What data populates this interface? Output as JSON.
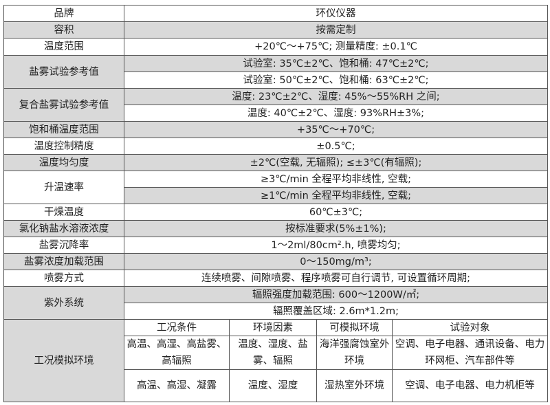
{
  "rows": {
    "brand": {
      "label": "品牌",
      "value": "环仪仪器"
    },
    "volume": {
      "label": "容积",
      "value": "按需定制"
    },
    "temp_range": {
      "label": "温度范围",
      "value": "+20℃～+75℃; 测量精度: ±0.1℃"
    },
    "salt_spray_ref": {
      "label": "盐雾试验参考值",
      "values": [
        "试验室: 35℃±2℃、饱和桶: 47℃±2℃;",
        "试验室: 50℃±2℃、饱和桶: 63℃±2℃;"
      ]
    },
    "composite_ref": {
      "label": "复合盐雾试验参考值",
      "values": [
        "温度: 23℃±2℃、湿度: 45%～55%RH 之间;",
        "温度: 40℃±2℃、湿度: 93%RH±3%;"
      ]
    },
    "saturation_range": {
      "label": "饱和桶温度范围",
      "value": "+35℃～+70℃;"
    },
    "temp_control": {
      "label": "温度控制精度",
      "value": "±0.5℃;"
    },
    "temp_uniformity": {
      "label": "温度均匀度",
      "value": "±2℃(空载, 无辐照); ≤±3℃(有辐照);"
    },
    "heating_rate": {
      "label": "升温速率",
      "values": [
        "≥3℃/min 全程平均非线性, 空载;",
        "≥1℃/min 全程平均非线性, 空载;"
      ]
    },
    "drying_temp": {
      "label": "干燥温度",
      "value": "60℃±3℃;"
    },
    "nacl_concentration": {
      "label": "氯化钠盐水溶液浓度",
      "value": "按标准要求(5%±1%);"
    },
    "settling_rate": {
      "label": "盐雾沉降率",
      "value": "1～2ml/80cm².h, 喷雾均匀;"
    },
    "concentration_range": {
      "label": "盐雾浓度加载范围",
      "value": "0～150mg/m³;"
    },
    "spray_mode": {
      "label": "喷雾方式",
      "value": "连续喷雾、间隙喷雾、程序喷雾可自行调节, 可设置循环周期;"
    },
    "uv_system": {
      "label": "紫外系统",
      "values": [
        "辐照强度加载范围: 600～1200W/㎡;",
        "辐照覆盖区域: 2.6m*1.2m;"
      ]
    },
    "conditions": {
      "label": "工况模拟环境",
      "headers": [
        "工况条件",
        "环境因素",
        "可模拟环境",
        "试验对象"
      ],
      "rows": [
        [
          "高温、高湿、高盐雾、高辐照",
          "温度、湿度、盐雾、辐照",
          "海洋强腐蚀室外环境",
          "空调、电子电器、通讯设备、电力环网柜、汽车部件等"
        ],
        [
          "高温、高湿、凝露",
          "温度、湿度",
          "湿热室外环境",
          "空调、电子电器、电力机柜等"
        ]
      ]
    }
  },
  "colors": {
    "shade": "#d9d9d9",
    "border": "#555555"
  }
}
